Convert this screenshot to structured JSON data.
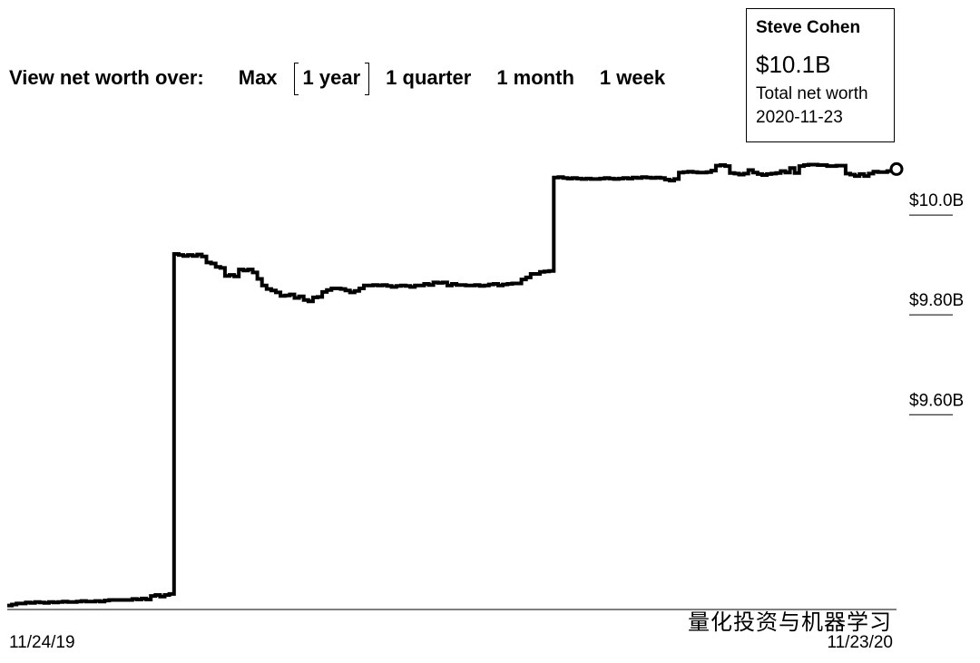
{
  "range_selector": {
    "label": "View net worth over:",
    "options": [
      "Max",
      "1 year",
      "1 quarter",
      "1 month",
      "1 week"
    ],
    "selected": "1 year"
  },
  "tooltip": {
    "name": "Steve Cohen",
    "value": "$10.1B",
    "caption": "Total net worth",
    "date": "2020-11-23"
  },
  "watermark": "量化投资与机器学习",
  "chart_data": {
    "type": "line",
    "title": "",
    "xlabel": "",
    "ylabel": "",
    "x_tick_labels": [
      "11/24/19",
      "11/23/20"
    ],
    "y_ticks": [
      {
        "value": 10.0,
        "label": "$10.0B"
      },
      {
        "value": 9.8,
        "label": "$9.80B"
      },
      {
        "value": 9.6,
        "label": "$9.60B"
      }
    ],
    "ylim": [
      9.21,
      10.14
    ],
    "grid": false,
    "legend": "none",
    "series": [
      {
        "name": "",
        "values": [
          9.218,
          9.22,
          9.222,
          9.222,
          9.224,
          9.223,
          9.225,
          9.224,
          9.223,
          9.225,
          9.224,
          9.225,
          9.226,
          9.225,
          9.225,
          9.226,
          9.227,
          9.226,
          9.226,
          9.227,
          9.226,
          9.228,
          9.229,
          9.229,
          9.229,
          9.229,
          9.229,
          9.231,
          9.23,
          9.232,
          9.23,
          9.237,
          9.239,
          9.236,
          9.239,
          9.241,
          9.922,
          9.92,
          9.918,
          9.92,
          9.918,
          9.921,
          9.917,
          9.905,
          9.903,
          9.896,
          9.894,
          9.878,
          9.88,
          9.877,
          9.891,
          9.889,
          9.891,
          9.885,
          9.872,
          9.859,
          9.852,
          9.849,
          9.845,
          9.838,
          9.839,
          9.841,
          9.834,
          9.837,
          9.83,
          9.827,
          9.835,
          9.836,
          9.846,
          9.85,
          9.853,
          9.853,
          9.852,
          9.849,
          9.845,
          9.848,
          9.853,
          9.859,
          9.859,
          9.86,
          9.859,
          9.86,
          9.858,
          9.856,
          9.858,
          9.859,
          9.858,
          9.856,
          9.859,
          9.859,
          9.862,
          9.86,
          9.865,
          9.864,
          9.865,
          9.859,
          9.862,
          9.86,
          9.86,
          9.859,
          9.859,
          9.86,
          9.858,
          9.859,
          9.861,
          9.862,
          9.859,
          9.861,
          9.862,
          9.863,
          9.863,
          9.871,
          9.875,
          9.882,
          9.882,
          9.886,
          9.887,
          9.888,
          10.075,
          10.076,
          10.074,
          10.073,
          10.074,
          10.073,
          10.072,
          10.073,
          10.072,
          10.072,
          10.073,
          10.074,
          10.073,
          10.072,
          10.073,
          10.074,
          10.073,
          10.075,
          10.074,
          10.076,
          10.075,
          10.074,
          10.075,
          10.074,
          10.071,
          10.069,
          10.072,
          10.085,
          10.086,
          10.087,
          10.086,
          10.085,
          10.085,
          10.086,
          10.089,
          10.099,
          10.1,
          10.098,
          10.084,
          10.083,
          10.081,
          10.083,
          10.09,
          10.085,
          10.082,
          10.08,
          10.082,
          10.083,
          10.084,
          10.088,
          10.085,
          10.094,
          10.084,
          10.098,
          10.1,
          10.101,
          10.101,
          10.1,
          10.1,
          10.098,
          10.098,
          10.099,
          10.099,
          10.083,
          10.081,
          10.078,
          10.082,
          10.078,
          10.083,
          10.087,
          10.086,
          10.086,
          10.088,
          10.089,
          10.092
        ]
      }
    ]
  }
}
